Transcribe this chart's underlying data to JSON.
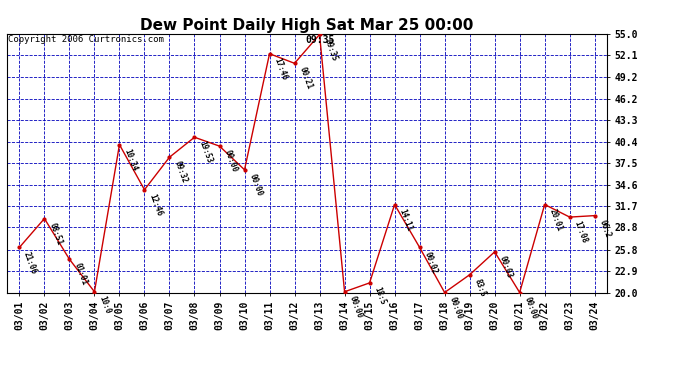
{
  "title": "Dew Point Daily High Sat Mar 25 00:00",
  "copyright": "Copyright 2006 Curtronics.com",
  "background_color": "#ffffff",
  "line_color": "#cc0000",
  "marker_color": "#cc0000",
  "grid_color": "#0000bb",
  "x_labels": [
    "03/01",
    "03/02",
    "03/03",
    "03/04",
    "03/05",
    "03/06",
    "03/07",
    "03/08",
    "03/09",
    "03/10",
    "03/11",
    "03/12",
    "03/13",
    "03/14",
    "03/15",
    "03/16",
    "03/17",
    "03/18",
    "03/19",
    "03/20",
    "03/21",
    "03/22",
    "03/23",
    "03/24"
  ],
  "y_values": [
    26.1,
    30.0,
    24.5,
    20.1,
    40.0,
    33.9,
    38.3,
    41.0,
    39.8,
    36.6,
    52.3,
    51.0,
    54.9,
    20.1,
    21.3,
    31.9,
    26.1,
    20.0,
    22.4,
    25.5,
    20.0,
    31.9,
    30.2,
    30.4
  ],
  "point_labels": [
    "21:06",
    "08:51",
    "01:01",
    "10:0",
    "10:34",
    "12:46",
    "09:32",
    "19:53",
    "00:00",
    "00:00",
    "17:46",
    "00:21",
    "09:35",
    "00:00",
    "18:5",
    "14:11",
    "00:02",
    "00:00",
    "83:5",
    "00:03",
    "00:00",
    "20:01",
    "17:08",
    "06:2"
  ],
  "highlight_idx": 12,
  "highlight_label": "09:35",
  "ylim_min": 20.0,
  "ylim_max": 55.0,
  "yticks": [
    20.0,
    22.9,
    25.8,
    28.8,
    31.7,
    34.6,
    37.5,
    40.4,
    43.3,
    46.2,
    49.2,
    52.1,
    55.0
  ],
  "title_fontsize": 11,
  "label_fontsize": 5.5,
  "tick_fontsize": 7,
  "copyright_fontsize": 6.5,
  "highlight_fontsize": 7
}
